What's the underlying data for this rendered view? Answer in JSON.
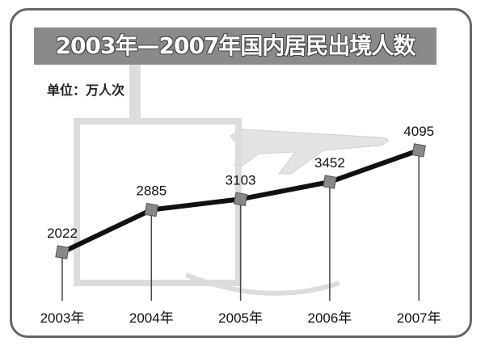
{
  "chart_data": {
    "type": "line",
    "title": "2003年—2007年国内居民出境人数",
    "unit_label": "单位：万人次",
    "categories": [
      "2003年",
      "2004年",
      "2005年",
      "2006年",
      "2007年"
    ],
    "series": [
      {
        "values": [
          2022,
          2885,
          3103,
          3452,
          4095
        ]
      }
    ],
    "data_labels": [
      "2022",
      "2885",
      "3103",
      "3452",
      "4095"
    ],
    "grid": false,
    "colors": {
      "line": "#111111",
      "marker": "#888888",
      "title_bg": "#8a8a8a",
      "frame": "#666666"
    }
  }
}
